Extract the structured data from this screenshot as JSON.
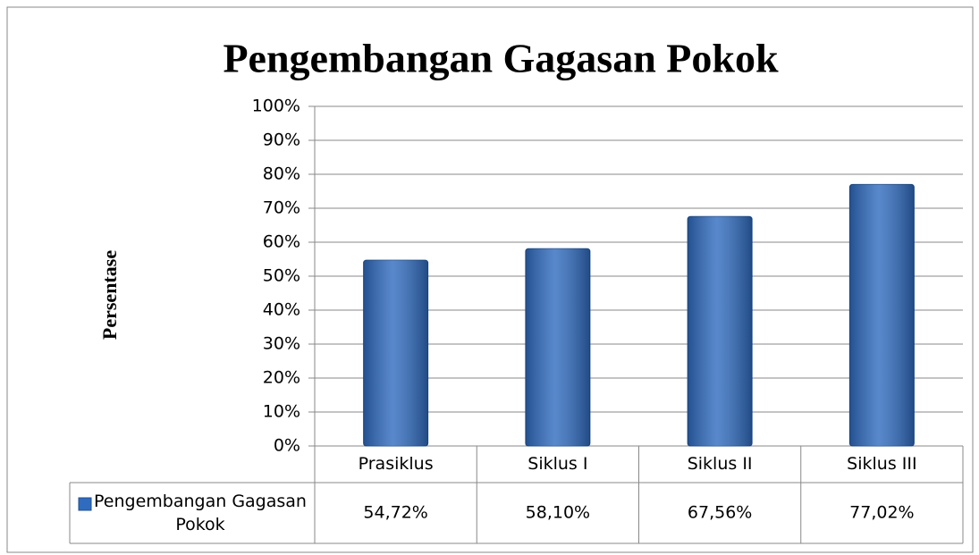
{
  "chart_data": {
    "type": "bar",
    "title": "Pengembangan Gagasan Pokok",
    "y_label": "Persentase",
    "categories": [
      "Prasiklus",
      "Siklus I",
      "Siklus II",
      "Siklus III"
    ],
    "series": [
      {
        "name": "Pengembangan Gagasan Pokok",
        "color": "#2f6bbf",
        "values": [
          54.72,
          58.1,
          67.56,
          77.02
        ],
        "value_labels": [
          "54,72%",
          "58,10%",
          "67,56%",
          "77,02%"
        ]
      }
    ],
    "ylim": [
      0,
      100
    ],
    "yticks": [
      {
        "value": 0,
        "label": "0%"
      },
      {
        "value": 10,
        "label": "10%"
      },
      {
        "value": 20,
        "label": "20%"
      },
      {
        "value": 30,
        "label": "30%"
      },
      {
        "value": 40,
        "label": "40%"
      },
      {
        "value": 50,
        "label": "50%"
      },
      {
        "value": 60,
        "label": "60%"
      },
      {
        "value": 70,
        "label": "70%"
      },
      {
        "value": 80,
        "label": "80%"
      },
      {
        "value": 90,
        "label": "90%"
      },
      {
        "value": 100,
        "label": "100%"
      }
    ],
    "grid": true
  }
}
